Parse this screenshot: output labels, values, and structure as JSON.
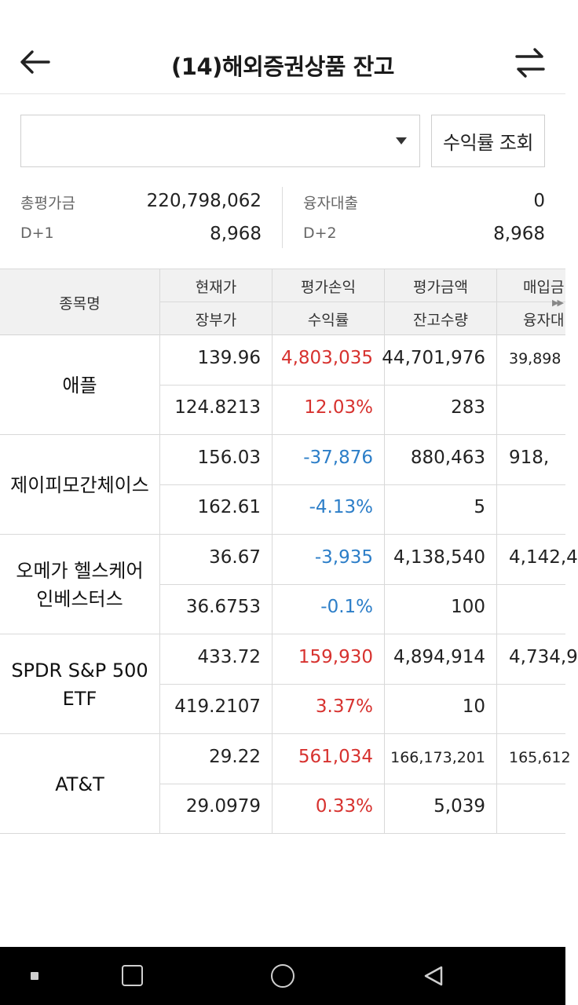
{
  "header": {
    "title": "(14)해외증권상품 잔고",
    "back_icon": "arrow-left-icon",
    "swap_icon": "swap-arrows-icon"
  },
  "controls": {
    "account_select_value": "",
    "rate_button_label": "수익률 조회"
  },
  "summary": {
    "total_eval_label": "총평가금",
    "total_eval_value": "220,798,062",
    "d1_label": "D+1",
    "d1_value": "8,968",
    "loan_label": "융자대출",
    "loan_value": "0",
    "d2_label": "D+2",
    "d2_value": "8,968"
  },
  "table": {
    "headers": {
      "name": "종목명",
      "col1_top": "현재가",
      "col1_bottom": "장부가",
      "col2_top": "평가손익",
      "col2_bottom": "수익률",
      "col3_top": "평가금액",
      "col3_bottom": "잔고수량",
      "col4_top": "매입금",
      "col4_bottom": "융자대",
      "scroll_hint": "▶▶"
    },
    "rows": [
      {
        "name": "애플",
        "current_price": "139.96",
        "book_price": "124.8213",
        "eval_pl": "4,803,035",
        "return_rate": "12.03%",
        "eval_amount": "44,701,976",
        "quantity": "283",
        "purchase_amount": "39,898"
      },
      {
        "name": "제이피모간체이스",
        "current_price": "156.03",
        "book_price": "162.61",
        "eval_pl": "-37,876",
        "return_rate": "-4.13%",
        "eval_amount": "880,463",
        "quantity": "5",
        "purchase_amount": "918,"
      },
      {
        "name": "오메가 헬스케어 인베스터스",
        "current_price": "36.67",
        "book_price": "36.6753",
        "eval_pl": "-3,935",
        "return_rate": "-0.1%",
        "eval_amount": "4,138,540",
        "quantity": "100",
        "purchase_amount": "4,142,4"
      },
      {
        "name": "SPDR S&P 500 ETF",
        "current_price": "433.72",
        "book_price": "419.2107",
        "eval_pl": "159,930",
        "return_rate": "3.37%",
        "eval_amount": "4,894,914",
        "quantity": "10",
        "purchase_amount": "4,734,9"
      },
      {
        "name": "AT&T",
        "current_price": "29.22",
        "book_price": "29.0979",
        "eval_pl": "561,034",
        "return_rate": "0.33%",
        "eval_amount": "166,173,201",
        "quantity": "5,039",
        "purchase_amount": "165,612"
      }
    ]
  },
  "colors": {
    "positive": "#d7322f",
    "negative": "#2c7ec8",
    "header_bg": "#f1f1f1"
  },
  "navbar": {
    "recent_icon": "recent-apps-icon",
    "home_icon": "home-icon",
    "back_icon": "nav-back-icon",
    "menu_icon": "menu-dot-icon"
  }
}
